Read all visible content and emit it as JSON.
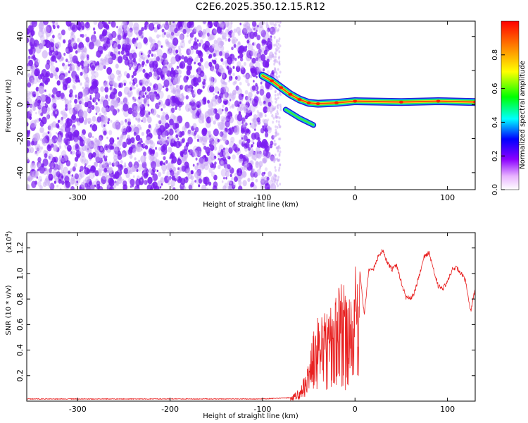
{
  "title": "C2E6.2025.350.12.15.R12",
  "colors": {
    "snr_line": "#e82020",
    "scatter_purple": "#7a1cf0",
    "scatter_light": "#c9a8f5",
    "background": "#ffffff",
    "axes": "#000000"
  },
  "chart_data": [
    {
      "type": "heatmap",
      "name": "spectrogram",
      "xlabel": "Height of straight line (km)",
      "ylabel": "Frequency (Hz)",
      "xlim": [
        -355,
        130
      ],
      "ylim": [
        -50,
        49
      ],
      "xticks": [
        -300,
        -200,
        -100,
        0,
        100
      ],
      "yticks": [
        -40,
        -20,
        0,
        20,
        40
      ],
      "xtick_labels": [
        "-300",
        "-200",
        "-100",
        "0",
        "100"
      ],
      "ytick_labels": [
        "-40",
        "-20",
        "0",
        "20",
        "40"
      ],
      "noise_region_x": [
        -355,
        -88
      ],
      "signal_track": [
        {
          "x": -100,
          "y": 17
        },
        {
          "x": -90,
          "y": 14
        },
        {
          "x": -80,
          "y": 10
        },
        {
          "x": -70,
          "y": 6
        },
        {
          "x": -60,
          "y": 3
        },
        {
          "x": -50,
          "y": 1
        },
        {
          "x": -40,
          "y": 0.5
        },
        {
          "x": -20,
          "y": 1
        },
        {
          "x": 0,
          "y": 2
        },
        {
          "x": 50,
          "y": 1.5
        },
        {
          "x": 90,
          "y": 2
        },
        {
          "x": 130,
          "y": 1.5
        }
      ],
      "secondary_track": [
        {
          "x": -75,
          "y": -3
        },
        {
          "x": -60,
          "y": -8
        },
        {
          "x": -45,
          "y": -12
        }
      ],
      "colorbar": {
        "label": "Normalized spectral amplitude",
        "range": [
          0,
          1
        ],
        "ticks": [
          0.0,
          0.2,
          0.4,
          0.6,
          0.8
        ],
        "tick_labels": [
          "0.0",
          "0.2",
          "0.4",
          "0.6",
          "0.8"
        ]
      }
    },
    {
      "type": "line",
      "name": "snr",
      "xlabel": "Height of straight line (km)",
      "ylabel": "SNR (10 * v/v)",
      "multiplier_label": "(x10",
      "multiplier_exp": "4",
      "multiplier_close": ")",
      "xlim": [
        -355,
        130
      ],
      "ylim": [
        0,
        1.32
      ],
      "xticks": [
        -300,
        -200,
        -100,
        0,
        100
      ],
      "yticks": [
        0.2,
        0.4,
        0.6,
        0.8,
        1.0,
        1.2
      ],
      "xtick_labels": [
        "-300",
        "-200",
        "-100",
        "0",
        "100"
      ],
      "ytick_labels": [
        "0.2",
        "0.4",
        "0.6",
        "0.8",
        "1.0",
        "1.2"
      ],
      "envelope": [
        {
          "x": -355,
          "y": 0.02
        },
        {
          "x": -100,
          "y": 0.02
        },
        {
          "x": -70,
          "y": 0.03
        },
        {
          "x": -60,
          "y": 0.1
        },
        {
          "x": -50,
          "y": 0.3
        },
        {
          "x": -45,
          "y": 0.55
        },
        {
          "x": -40,
          "y": 0.7
        },
        {
          "x": -35,
          "y": 0.85
        },
        {
          "x": -30,
          "y": 0.7
        },
        {
          "x": -25,
          "y": 0.9
        },
        {
          "x": -20,
          "y": 0.85
        },
        {
          "x": -15,
          "y": 1.0
        },
        {
          "x": -10,
          "y": 0.85
        },
        {
          "x": -5,
          "y": 0.9
        },
        {
          "x": 0,
          "y": 0.95
        },
        {
          "x": 5,
          "y": 1.05
        },
        {
          "x": 10,
          "y": 0.7
        },
        {
          "x": 15,
          "y": 1.05
        },
        {
          "x": 20,
          "y": 1.05
        },
        {
          "x": 25,
          "y": 1.15
        },
        {
          "x": 30,
          "y": 1.2
        },
        {
          "x": 35,
          "y": 1.1
        },
        {
          "x": 40,
          "y": 1.05
        },
        {
          "x": 45,
          "y": 1.08
        },
        {
          "x": 50,
          "y": 0.95
        },
        {
          "x": 55,
          "y": 0.83
        },
        {
          "x": 60,
          "y": 0.82
        },
        {
          "x": 65,
          "y": 0.88
        },
        {
          "x": 70,
          "y": 1.02
        },
        {
          "x": 75,
          "y": 1.15
        },
        {
          "x": 80,
          "y": 1.18
        },
        {
          "x": 85,
          "y": 1.05
        },
        {
          "x": 90,
          "y": 0.92
        },
        {
          "x": 95,
          "y": 0.9
        },
        {
          "x": 100,
          "y": 0.95
        },
        {
          "x": 105,
          "y": 1.05
        },
        {
          "x": 110,
          "y": 1.06
        },
        {
          "x": 115,
          "y": 1.02
        },
        {
          "x": 120,
          "y": 0.95
        },
        {
          "x": 125,
          "y": 0.72
        },
        {
          "x": 130,
          "y": 0.9
        }
      ]
    }
  ]
}
